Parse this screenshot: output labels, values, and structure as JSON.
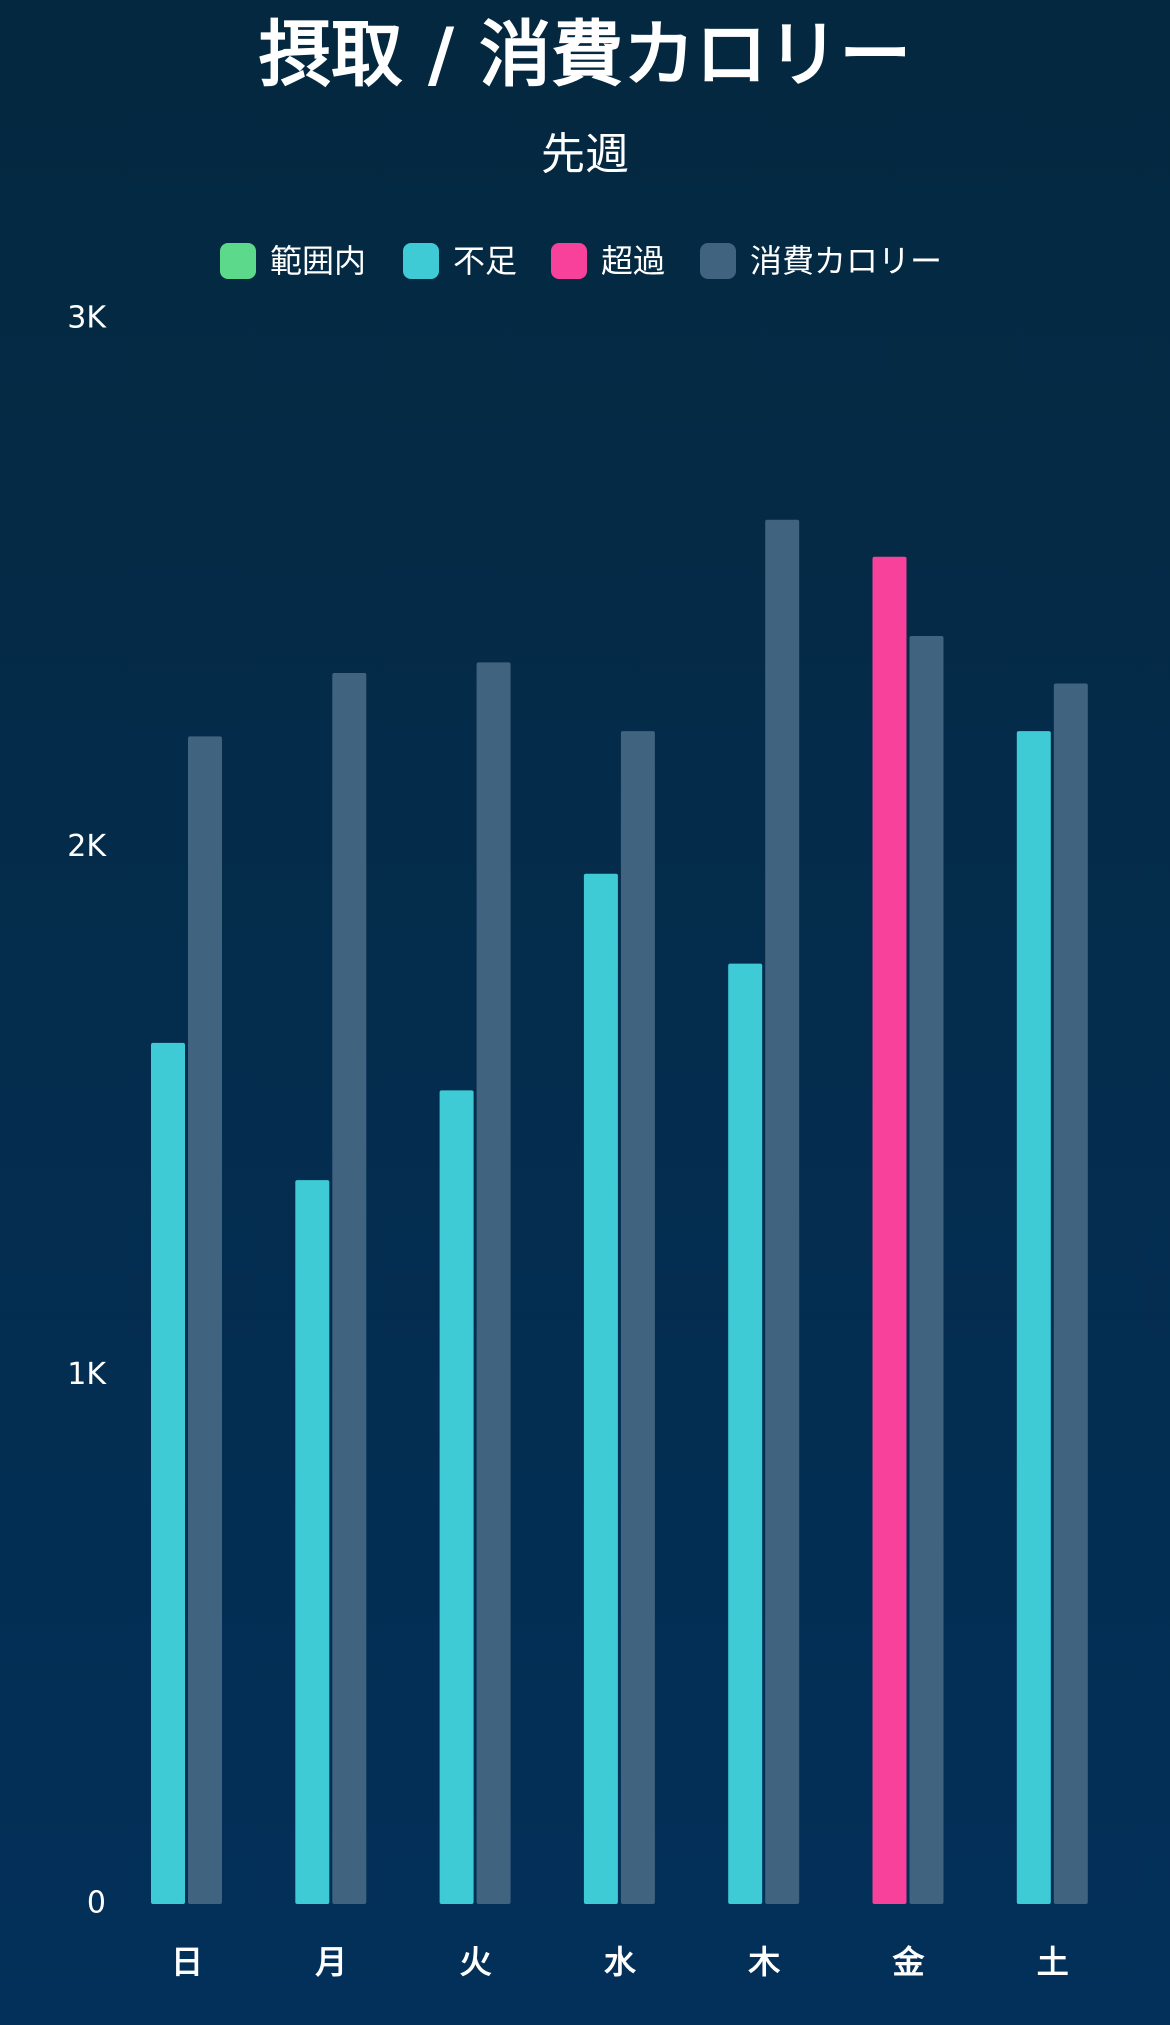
{
  "chart_data": {
    "type": "bar",
    "title": "摂取 / 消費カロリー",
    "subtitle": "先週",
    "categories": [
      "日",
      "月",
      "火",
      "水",
      "木",
      "金",
      "土"
    ],
    "series": [
      {
        "name": "範囲内",
        "color": "#5cd98b",
        "values": [
          null,
          null,
          null,
          null,
          null,
          null,
          null
        ]
      },
      {
        "name": "不足",
        "color": "#3ecbd6",
        "values": [
          1630,
          1370,
          1540,
          1950,
          1780,
          null,
          2220
        ]
      },
      {
        "name": "超過",
        "color": "#f7419a",
        "values": [
          null,
          null,
          null,
          null,
          null,
          2550,
          null
        ]
      },
      {
        "name": "消費カロリー",
        "color": "#40637f",
        "values": [
          2210,
          2330,
          2350,
          2220,
          2620,
          2400,
          2310
        ]
      }
    ],
    "ylim": [
      0,
      3000
    ],
    "yticks": [
      0,
      {
        "value": 1000,
        "label": "1K"
      },
      {
        "value": 2000,
        "label": "2K"
      },
      {
        "value": 3000,
        "label": "3K"
      }
    ]
  }
}
